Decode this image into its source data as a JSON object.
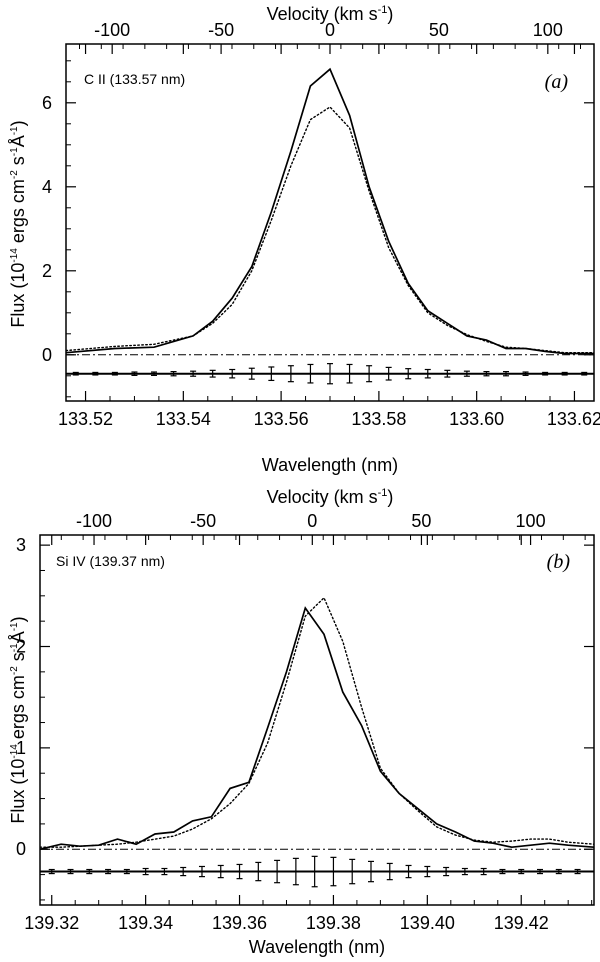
{
  "chart_data": [
    {
      "type": "line",
      "panel_tag": "(a)",
      "line_label": "C II (133.57 nm)",
      "xlabel": "Wavelength (nm)",
      "top_axis_label": "Velocity (km s",
      "top_axis_sup": "-1",
      "top_axis_close": ")",
      "ylabel_parts": [
        "Flux (10",
        "-14",
        " ergs cm",
        "-2",
        " s",
        "-1",
        "Å",
        "-1",
        ")"
      ],
      "xlim": [
        133.516,
        133.624
      ],
      "ylim": [
        -1.1,
        7.4
      ],
      "x_ticks": [
        133.52,
        133.54,
        133.56,
        133.58,
        133.6,
        133.62
      ],
      "x_tick_labels": [
        "133.52",
        "133.54",
        "133.56",
        "133.58",
        "133.60",
        "133.62"
      ],
      "y_ticks": [
        0,
        2,
        4,
        6
      ],
      "y_tick_labels": [
        "0",
        "2",
        "4",
        "6"
      ],
      "velocity_ticks": [
        -100,
        -50,
        0,
        50,
        100
      ],
      "velocity_tick_labels": [
        "-100",
        "-50",
        "0",
        "50",
        "100"
      ],
      "rest_wavelength": 133.57,
      "series": [
        {
          "name": "observed",
          "style": "solid",
          "x": [
            133.516,
            133.526,
            133.534,
            133.542,
            133.546,
            133.55,
            133.554,
            133.558,
            133.562,
            133.566,
            133.57,
            133.574,
            133.578,
            133.582,
            133.586,
            133.59,
            133.594,
            133.598,
            133.602,
            133.606,
            133.61,
            133.614,
            133.618,
            133.624
          ],
          "y": [
            0.05,
            0.15,
            0.18,
            0.45,
            0.8,
            1.35,
            2.1,
            3.4,
            4.85,
            6.4,
            6.8,
            5.7,
            4.0,
            2.7,
            1.7,
            1.05,
            0.75,
            0.45,
            0.35,
            0.15,
            0.15,
            0.08,
            0.03,
            0.03
          ]
        },
        {
          "name": "model",
          "style": "dotted",
          "x": [
            133.516,
            133.526,
            133.534,
            133.542,
            133.546,
            133.55,
            133.554,
            133.558,
            133.562,
            133.566,
            133.57,
            133.574,
            133.578,
            133.582,
            133.586,
            133.59,
            133.594,
            133.598,
            133.602,
            133.606,
            133.61,
            133.614,
            133.618,
            133.624
          ],
          "y": [
            0.1,
            0.2,
            0.25,
            0.45,
            0.75,
            1.2,
            2.0,
            3.2,
            4.5,
            5.6,
            5.9,
            5.4,
            3.9,
            2.55,
            1.65,
            1.0,
            0.7,
            0.48,
            0.32,
            0.18,
            0.15,
            0.1,
            0.05,
            0.05
          ]
        }
      ],
      "zero_line": 0.0,
      "error_baseline": -0.45,
      "error_bars": {
        "x": [
          133.518,
          133.522,
          133.526,
          133.53,
          133.534,
          133.538,
          133.542,
          133.546,
          133.55,
          133.554,
          133.558,
          133.562,
          133.566,
          133.57,
          133.574,
          133.578,
          133.582,
          133.586,
          133.59,
          133.594,
          133.598,
          133.602,
          133.606,
          133.61,
          133.614,
          133.618,
          133.622
        ],
        "half_height": [
          0.03,
          0.03,
          0.03,
          0.04,
          0.04,
          0.05,
          0.06,
          0.08,
          0.1,
          0.13,
          0.16,
          0.19,
          0.22,
          0.24,
          0.22,
          0.19,
          0.15,
          0.12,
          0.1,
          0.08,
          0.06,
          0.05,
          0.05,
          0.04,
          0.03,
          0.03,
          0.03
        ]
      }
    },
    {
      "type": "line",
      "panel_tag": "(b)",
      "line_label": "Si IV (139.37 nm)",
      "xlabel": "Wavelength (nm)",
      "top_axis_label": "Velocity (km s",
      "top_axis_sup": "-1",
      "top_axis_close": ")",
      "ylabel_parts": [
        "Flux (10",
        "-14",
        " ergs cm",
        "-2",
        " s",
        "-1",
        "Å",
        "-1",
        ")"
      ],
      "xlim": [
        139.3175,
        139.4355
      ],
      "ylim": [
        -0.55,
        3.1
      ],
      "x_ticks": [
        139.32,
        139.34,
        139.36,
        139.38,
        139.4,
        139.42
      ],
      "x_tick_labels": [
        "139.32",
        "139.34",
        "139.36",
        "139.38",
        "139.40",
        "139.42"
      ],
      "y_ticks": [
        0,
        1,
        2,
        3
      ],
      "y_tick_labels": [
        "0",
        "1",
        "2",
        "3"
      ],
      "velocity_ticks": [
        -100,
        -50,
        0,
        50,
        100
      ],
      "velocity_tick_labels": [
        "-100",
        "-50",
        "0",
        "50",
        "100"
      ],
      "rest_wavelength": 139.3755,
      "series": [
        {
          "name": "observed",
          "style": "solid",
          "x": [
            139.3175,
            139.322,
            139.326,
            139.33,
            139.334,
            139.338,
            139.342,
            139.346,
            139.35,
            139.354,
            139.358,
            139.362,
            139.366,
            139.37,
            139.374,
            139.378,
            139.382,
            139.386,
            139.39,
            139.394,
            139.398,
            139.402,
            139.406,
            139.41,
            139.414,
            139.418,
            139.422,
            139.426,
            139.43,
            139.4355
          ],
          "y": [
            0.0,
            0.05,
            0.03,
            0.04,
            0.1,
            0.05,
            0.15,
            0.17,
            0.28,
            0.32,
            0.6,
            0.66,
            1.2,
            1.75,
            2.38,
            2.12,
            1.55,
            1.22,
            0.77,
            0.55,
            0.4,
            0.25,
            0.17,
            0.08,
            0.06,
            0.02,
            0.04,
            0.06,
            0.04,
            0.02
          ]
        },
        {
          "name": "model",
          "style": "dotted",
          "x": [
            139.3175,
            139.322,
            139.326,
            139.33,
            139.334,
            139.338,
            139.342,
            139.346,
            139.35,
            139.354,
            139.358,
            139.362,
            139.366,
            139.37,
            139.374,
            139.378,
            139.382,
            139.386,
            139.39,
            139.394,
            139.398,
            139.402,
            139.406,
            139.41,
            139.414,
            139.418,
            139.422,
            139.426,
            139.43,
            139.4355
          ],
          "y": [
            0.02,
            0.02,
            0.03,
            0.04,
            0.05,
            0.07,
            0.1,
            0.13,
            0.2,
            0.3,
            0.45,
            0.65,
            1.05,
            1.65,
            2.3,
            2.48,
            2.05,
            1.4,
            0.8,
            0.55,
            0.38,
            0.22,
            0.14,
            0.09,
            0.07,
            0.08,
            0.1,
            0.1,
            0.07,
            0.05
          ]
        }
      ],
      "zero_line": 0.0,
      "error_baseline": -0.22,
      "error_bars": {
        "x": [
          139.32,
          139.324,
          139.328,
          139.332,
          139.336,
          139.34,
          139.344,
          139.348,
          139.352,
          139.356,
          139.36,
          139.364,
          139.368,
          139.372,
          139.376,
          139.38,
          139.384,
          139.388,
          139.392,
          139.396,
          139.4,
          139.404,
          139.408,
          139.412,
          139.416,
          139.42,
          139.424,
          139.428,
          139.432
        ],
        "half_height": [
          0.02,
          0.02,
          0.02,
          0.02,
          0.02,
          0.03,
          0.03,
          0.04,
          0.05,
          0.06,
          0.07,
          0.09,
          0.11,
          0.13,
          0.15,
          0.14,
          0.12,
          0.1,
          0.08,
          0.06,
          0.05,
          0.04,
          0.03,
          0.03,
          0.02,
          0.02,
          0.02,
          0.02,
          0.02
        ]
      }
    }
  ]
}
